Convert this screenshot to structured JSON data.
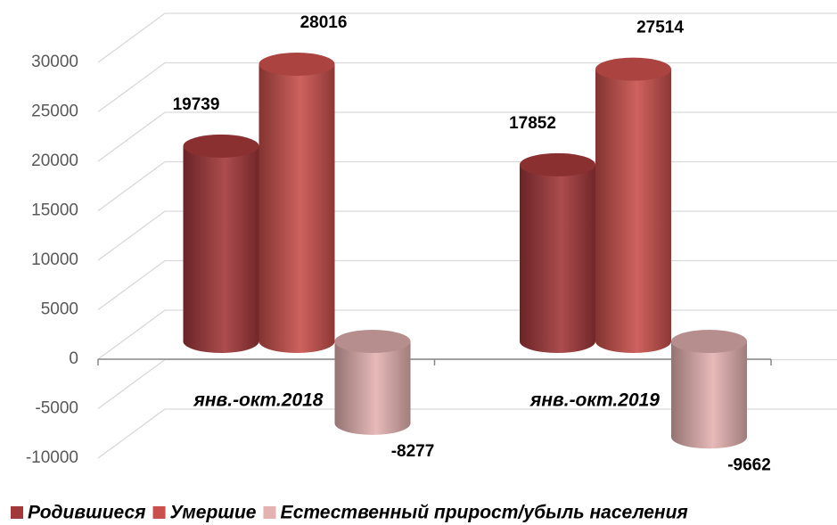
{
  "chart_data": {
    "type": "bar3d",
    "categories": [
      "янв.-окт.2018",
      "янв.-окт.2019"
    ],
    "series": [
      {
        "name": "Родившиеся",
        "color": "#a3383a",
        "values": [
          19739,
          17852
        ]
      },
      {
        "name": "Умершие",
        "color": "#c9504c",
        "values": [
          28016,
          27514
        ]
      },
      {
        "name": "Естественный прирост/убыль населения",
        "color": "#e4b2b1",
        "values": [
          -8277,
          -9662
        ]
      }
    ],
    "ylim": [
      -10000,
      30000
    ],
    "yticks": [
      -10000,
      -5000,
      0,
      5000,
      10000,
      15000,
      20000,
      25000,
      30000
    ],
    "grid": true,
    "legend": "bottom"
  }
}
